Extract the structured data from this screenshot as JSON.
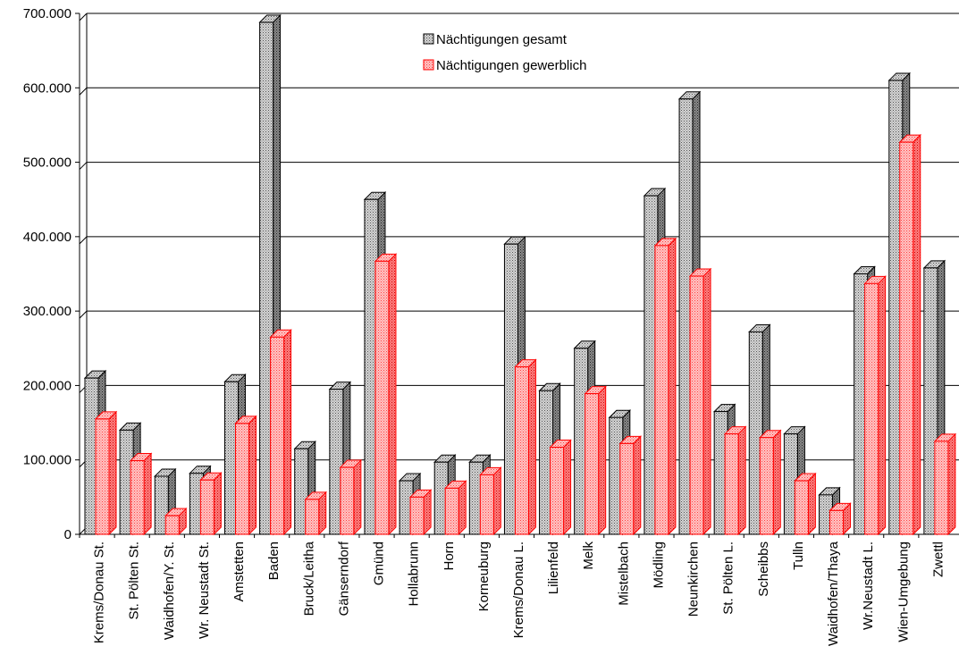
{
  "chart_data": {
    "type": "bar",
    "categories": [
      "Krems/Donau St.",
      "St. Pölten St.",
      "Waidhofen/Y. St.",
      "Wr. Neustadt St.",
      "Amstetten",
      "Baden",
      "Bruck/Leitha",
      "Gänserndorf",
      "Gmünd",
      "Hollabrunn",
      "Horn",
      "Korneuburg",
      "Krems/Donau L.",
      "Lilienfeld",
      "Melk",
      "Mistelbach",
      "Mödling",
      "Neunkirchen",
      "St. Pölten L.",
      "Scheibbs",
      "Tulln",
      "Waidhofen/Thaya",
      "Wr.Neustadt L.",
      "Wien-Umgebung",
      "Zwettl"
    ],
    "series": [
      {
        "name": "Nächtigungen gesamt",
        "color": "#9a9a9a",
        "values": [
          210000,
          140000,
          78000,
          82000,
          205000,
          688000,
          115000,
          195000,
          450000,
          72000,
          97000,
          97000,
          390000,
          193000,
          250000,
          157000,
          455000,
          585000,
          165000,
          272000,
          135000,
          53000,
          350000,
          610000,
          358000
        ]
      },
      {
        "name": "Nächtigungen gewerblich",
        "color": "#ff2020",
        "values": [
          155000,
          99000,
          25000,
          73000,
          149000,
          265000,
          47000,
          90000,
          367000,
          50000,
          62000,
          80000,
          225000,
          117000,
          189000,
          122000,
          388000,
          347000,
          135000,
          130000,
          72000,
          32000,
          337000,
          527000,
          125000
        ]
      }
    ],
    "y_tick_labels": [
      "0",
      "100.000",
      "200.000",
      "300.000",
      "400.000",
      "500.000",
      "600.000",
      "700.000"
    ],
    "ylim": [
      0,
      700000
    ],
    "grid": true,
    "legend_position": "top-center",
    "title": "",
    "xlabel": "",
    "ylabel": ""
  }
}
